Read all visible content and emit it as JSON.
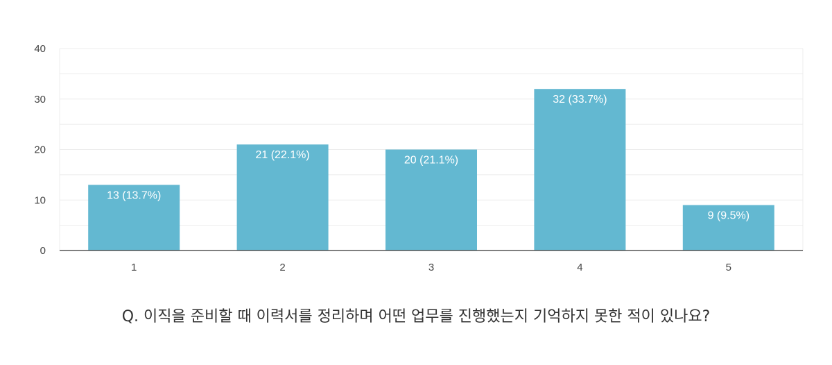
{
  "chart_data": {
    "type": "bar",
    "categories": [
      "1",
      "2",
      "3",
      "4",
      "5"
    ],
    "values": [
      13,
      21,
      20,
      32,
      9
    ],
    "data_labels": [
      "13 (13.7%)",
      "21 (22.1%)",
      "20 (21.1%)",
      "32 (33.7%)",
      "9 (9.5%)"
    ],
    "ylim": [
      0,
      40
    ],
    "yticks": [
      "0",
      "10",
      "20",
      "30",
      "40"
    ],
    "grid": true,
    "bar_color": "#63b8d1",
    "grid_color": "#ececec",
    "axis_color": "#555555"
  },
  "question": "Q. 이직을 준비할 때 이력서를 정리하며 어떤 업무를 진행했는지 기억하지 못한 적이 있나요?"
}
